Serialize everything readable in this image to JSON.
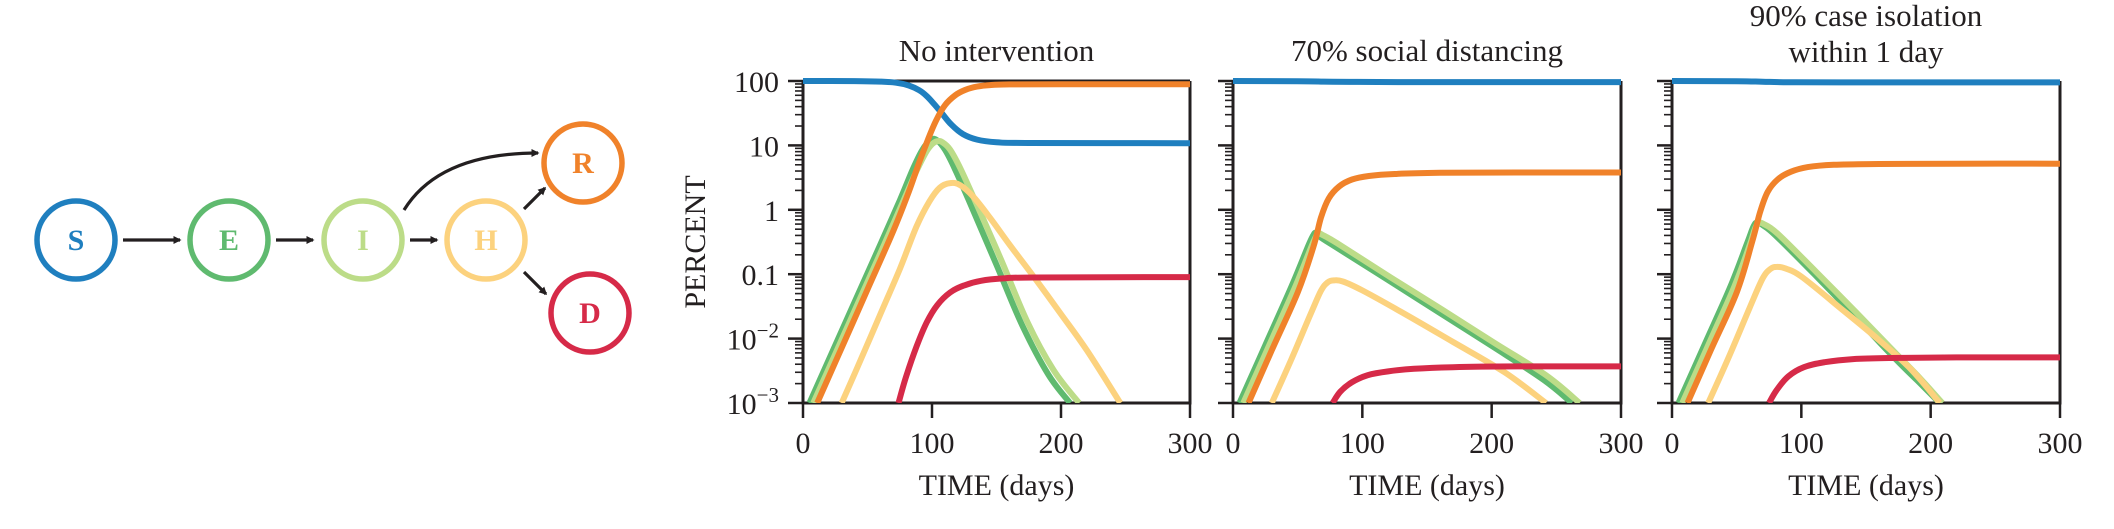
{
  "diagram": {
    "nodes": [
      {
        "id": "S",
        "label": "S",
        "color": "#1f7fbf"
      },
      {
        "id": "E",
        "label": "E",
        "color": "#5fba6f"
      },
      {
        "id": "I",
        "label": "I",
        "color": "#bcdc88"
      },
      {
        "id": "H",
        "label": "H",
        "color": "#fcd27e"
      },
      {
        "id": "R",
        "label": "R",
        "color": "#f0822a"
      },
      {
        "id": "D",
        "label": "D",
        "color": "#d62a48"
      }
    ],
    "edges": [
      {
        "from": "S",
        "to": "E"
      },
      {
        "from": "E",
        "to": "I"
      },
      {
        "from": "I",
        "to": "H"
      },
      {
        "from": "I",
        "to": "R",
        "curved": true
      },
      {
        "from": "H",
        "to": "R"
      },
      {
        "from": "H",
        "to": "D"
      }
    ]
  },
  "chart_data": [
    {
      "type": "line",
      "title": "No intervention",
      "xlabel": "TIME (days)",
      "ylabel": "PERCENT",
      "xlim": [
        0,
        300
      ],
      "ylim": [
        0.001,
        100
      ],
      "yscale": "log",
      "xticks": [
        "0",
        "100",
        "200",
        "300"
      ],
      "yticks": [
        "100",
        "10",
        "1",
        "0.1",
        "10^-2",
        "10^-3"
      ],
      "show_ylabels": true,
      "series": [
        {
          "name": "S",
          "color": "#1f7fbf",
          "points": [
            [
              0,
              100
            ],
            [
              40,
              99.5
            ],
            [
              60,
              98
            ],
            [
              72,
              94
            ],
            [
              82,
              85
            ],
            [
              90,
              72
            ],
            [
              96,
              58
            ],
            [
              102,
              43
            ],
            [
              108,
              31
            ],
            [
              115,
              21
            ],
            [
              124,
              15
            ],
            [
              135,
              12.3
            ],
            [
              150,
              11.2
            ],
            [
              175,
              10.9
            ],
            [
              300,
              10.8
            ]
          ]
        },
        {
          "name": "E",
          "color": "#5fba6f",
          "points": [
            [
              5,
              0.001
            ],
            [
              20,
              0.0047
            ],
            [
              40,
              0.037
            ],
            [
              60,
              0.29
            ],
            [
              75,
              1.4
            ],
            [
              85,
              4.2
            ],
            [
              92,
              8.2
            ],
            [
              97,
              11.3
            ],
            [
              100,
              12.6
            ],
            [
              104,
              12.0
            ],
            [
              110,
              8.6
            ],
            [
              118,
              4.2
            ],
            [
              130,
              1.2
            ],
            [
              150,
              0.14
            ],
            [
              170,
              0.016
            ],
            [
              190,
              0.0028
            ],
            [
              207,
              0.001
            ]
          ]
        },
        {
          "name": "I",
          "color": "#bcdc88",
          "points": [
            [
              8,
              0.001
            ],
            [
              23,
              0.0047
            ],
            [
              43,
              0.037
            ],
            [
              63,
              0.29
            ],
            [
              78,
              1.4
            ],
            [
              88,
              4.0
            ],
            [
              95,
              7.6
            ],
            [
              100,
              10.4
            ],
            [
              104,
              11.6
            ],
            [
              108,
              11.2
            ],
            [
              114,
              8.6
            ],
            [
              122,
              4.4
            ],
            [
              134,
              1.3
            ],
            [
              154,
              0.16
            ],
            [
              174,
              0.018
            ],
            [
              194,
              0.0033
            ],
            [
              214,
              0.001
            ]
          ]
        },
        {
          "name": "H",
          "color": "#fcd27e",
          "points": [
            [
              30,
              0.001
            ],
            [
              45,
              0.0048
            ],
            [
              60,
              0.024
            ],
            [
              75,
              0.12
            ],
            [
              88,
              0.55
            ],
            [
              98,
              1.35
            ],
            [
              106,
              2.2
            ],
            [
              114,
              2.6
            ],
            [
              122,
              2.4
            ],
            [
              132,
              1.6
            ],
            [
              145,
              0.75
            ],
            [
              160,
              0.29
            ],
            [
              180,
              0.085
            ],
            [
              200,
              0.024
            ],
            [
              220,
              0.0066
            ],
            [
              246,
              0.001
            ]
          ]
        },
        {
          "name": "R",
          "color": "#f0822a",
          "points": [
            [
              11,
              0.001
            ],
            [
              30,
              0.0072
            ],
            [
              50,
              0.058
            ],
            [
              70,
              0.47
            ],
            [
              82,
              1.9
            ],
            [
              90,
              5.4
            ],
            [
              97,
              12.5
            ],
            [
              103,
              24
            ],
            [
              110,
              42
            ],
            [
              118,
              60
            ],
            [
              126,
              73
            ],
            [
              135,
              82
            ],
            [
              145,
              86.5
            ],
            [
              160,
              88.5
            ],
            [
              200,
              89
            ],
            [
              300,
              89
            ]
          ]
        },
        {
          "name": "D",
          "color": "#d62a48",
          "points": [
            [
              74,
              0.001
            ],
            [
              80,
              0.0026
            ],
            [
              88,
              0.0075
            ],
            [
              96,
              0.018
            ],
            [
              104,
              0.033
            ],
            [
              114,
              0.052
            ],
            [
              125,
              0.067
            ],
            [
              138,
              0.079
            ],
            [
              155,
              0.086
            ],
            [
              180,
              0.089
            ],
            [
              300,
              0.09
            ]
          ]
        }
      ]
    },
    {
      "type": "line",
      "title": "70% social distancing",
      "xlabel": "TIME (days)",
      "ylabel": "",
      "xlim": [
        0,
        300
      ],
      "ylim": [
        0.001,
        100
      ],
      "yscale": "log",
      "xticks": [
        "0",
        "100",
        "200",
        "300"
      ],
      "yticks": [],
      "show_ylabels": false,
      "series": [
        {
          "name": "S",
          "color": "#1f7fbf",
          "points": [
            [
              0,
              100
            ],
            [
              50,
              99.4
            ],
            [
              70,
              98
            ],
            [
              90,
              97
            ],
            [
              130,
              96.3
            ],
            [
              300,
              96.2
            ]
          ]
        },
        {
          "name": "E",
          "color": "#5fba6f",
          "points": [
            [
              5,
              0.001
            ],
            [
              25,
              0.0079
            ],
            [
              45,
              0.063
            ],
            [
              58,
              0.27
            ],
            [
              62,
              0.4
            ],
            [
              64,
              0.44
            ],
            [
              68,
              0.37
            ],
            [
              80,
              0.26
            ],
            [
              120,
              0.081
            ],
            [
              160,
              0.025
            ],
            [
              200,
              0.0077
            ],
            [
              240,
              0.0023
            ],
            [
              262,
              0.001
            ]
          ]
        },
        {
          "name": "I",
          "color": "#bcdc88",
          "points": [
            [
              8,
              0.001
            ],
            [
              28,
              0.0079
            ],
            [
              48,
              0.063
            ],
            [
              60,
              0.25
            ],
            [
              64,
              0.38
            ],
            [
              66,
              0.43
            ],
            [
              70,
              0.4
            ],
            [
              82,
              0.29
            ],
            [
              122,
              0.089
            ],
            [
              162,
              0.028
            ],
            [
              202,
              0.0086
            ],
            [
              242,
              0.0027
            ],
            [
              268,
              0.001
            ]
          ]
        },
        {
          "name": "H",
          "color": "#fcd27e",
          "points": [
            [
              30,
              0.001
            ],
            [
              45,
              0.0047
            ],
            [
              60,
              0.024
            ],
            [
              68,
              0.055
            ],
            [
              73,
              0.074
            ],
            [
              78,
              0.08
            ],
            [
              85,
              0.077
            ],
            [
              100,
              0.056
            ],
            [
              130,
              0.026
            ],
            [
              170,
              0.0089
            ],
            [
              210,
              0.003
            ],
            [
              242,
              0.001
            ]
          ]
        },
        {
          "name": "R",
          "color": "#f0822a",
          "points": [
            [
              12,
              0.001
            ],
            [
              30,
              0.0066
            ],
            [
              50,
              0.052
            ],
            [
              62,
              0.26
            ],
            [
              68,
              0.75
            ],
            [
              74,
              1.5
            ],
            [
              82,
              2.3
            ],
            [
              92,
              2.95
            ],
            [
              105,
              3.35
            ],
            [
              125,
              3.6
            ],
            [
              160,
              3.75
            ],
            [
              220,
              3.8
            ],
            [
              300,
              3.8
            ]
          ]
        },
        {
          "name": "D",
          "color": "#d62a48",
          "points": [
            [
              77,
              0.001
            ],
            [
              83,
              0.0015
            ],
            [
              92,
              0.0021
            ],
            [
              104,
              0.0027
            ],
            [
              120,
              0.0031
            ],
            [
              140,
              0.0034
            ],
            [
              170,
              0.0036
            ],
            [
              220,
              0.0037
            ],
            [
              300,
              0.0037
            ]
          ]
        }
      ]
    },
    {
      "type": "line",
      "title": "90% case isolation within 1 day",
      "title_lines": [
        "90% case isolation",
        "within 1 day"
      ],
      "xlabel": "TIME (days)",
      "ylabel": "",
      "xlim": [
        0,
        300
      ],
      "ylim": [
        0.001,
        100
      ],
      "yscale": "log",
      "xticks": [
        "0",
        "100",
        "200",
        "300"
      ],
      "yticks": [],
      "show_ylabels": false,
      "series": [
        {
          "name": "S",
          "color": "#1f7fbf",
          "points": [
            [
              0,
              100
            ],
            [
              50,
              99.3
            ],
            [
              70,
              97.5
            ],
            [
              90,
              95.8
            ],
            [
              130,
              95.2
            ],
            [
              300,
              95
            ]
          ]
        },
        {
          "name": "E",
          "color": "#5fba6f",
          "points": [
            [
              5,
              0.001
            ],
            [
              25,
              0.0079
            ],
            [
              45,
              0.063
            ],
            [
              58,
              0.3
            ],
            [
              63,
              0.55
            ],
            [
              66,
              0.64
            ],
            [
              70,
              0.58
            ],
            [
              80,
              0.4
            ],
            [
              110,
              0.1
            ],
            [
              140,
              0.024
            ],
            [
              170,
              0.0055
            ],
            [
              190,
              0.0022
            ],
            [
              207,
              0.001
            ]
          ]
        },
        {
          "name": "I",
          "color": "#bcdc88",
          "points": [
            [
              8,
              0.001
            ],
            [
              28,
              0.0079
            ],
            [
              48,
              0.063
            ],
            [
              60,
              0.28
            ],
            [
              64,
              0.5
            ],
            [
              67,
              0.62
            ],
            [
              71,
              0.6
            ],
            [
              82,
              0.42
            ],
            [
              112,
              0.106
            ],
            [
              142,
              0.026
            ],
            [
              172,
              0.0062
            ],
            [
              192,
              0.0024
            ],
            [
              209,
              0.001
            ]
          ]
        },
        {
          "name": "H",
          "color": "#fcd27e",
          "points": [
            [
              28,
              0.001
            ],
            [
              45,
              0.0058
            ],
            [
              60,
              0.03
            ],
            [
              70,
              0.085
            ],
            [
              76,
              0.12
            ],
            [
              81,
              0.13
            ],
            [
              88,
              0.122
            ],
            [
              100,
              0.092
            ],
            [
              130,
              0.03
            ],
            [
              160,
              0.0095
            ],
            [
              185,
              0.0033
            ],
            [
              207,
              0.001
            ]
          ]
        },
        {
          "name": "R",
          "color": "#f0822a",
          "points": [
            [
              12,
              0.001
            ],
            [
              30,
              0.0066
            ],
            [
              50,
              0.052
            ],
            [
              62,
              0.32
            ],
            [
              68,
              0.9
            ],
            [
              74,
              1.9
            ],
            [
              82,
              3.0
            ],
            [
              92,
              3.9
            ],
            [
              105,
              4.6
            ],
            [
              125,
              5.0
            ],
            [
              160,
              5.15
            ],
            [
              220,
              5.2
            ],
            [
              300,
              5.2
            ]
          ]
        },
        {
          "name": "D",
          "color": "#d62a48",
          "points": [
            [
              75,
              0.001
            ],
            [
              81,
              0.0016
            ],
            [
              90,
              0.0026
            ],
            [
              102,
              0.0036
            ],
            [
              118,
              0.0043
            ],
            [
              140,
              0.0048
            ],
            [
              170,
              0.005
            ],
            [
              220,
              0.0051
            ],
            [
              300,
              0.0051
            ]
          ]
        }
      ]
    }
  ]
}
